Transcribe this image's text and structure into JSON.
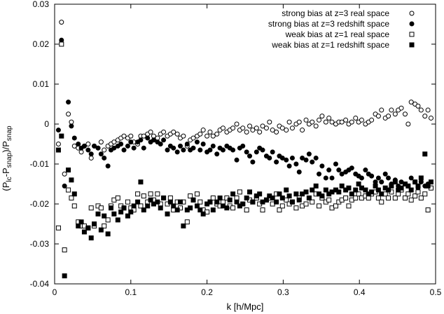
{
  "chart_data": {
    "type": "scatter",
    "title": "",
    "xlabel": "k [h/Mpc]",
    "ylabel": "(P_lc - P_snap)/P_snap",
    "xlim": [
      0,
      0.5
    ],
    "ylim": [
      -0.04,
      0.03
    ],
    "xticks": [
      "0",
      "0.1",
      "0.2",
      "0.3",
      "0.4",
      "0.5"
    ],
    "yticks": [
      "-0.04",
      "-0.03",
      "-0.02",
      "-0.01",
      "0",
      "0.01",
      "0.02",
      "0.03"
    ],
    "xtick_values": [
      0,
      0.1,
      0.2,
      0.3,
      0.4,
      0.5
    ],
    "ytick_values": [
      -0.04,
      -0.03,
      -0.02,
      -0.01,
      0,
      0.01,
      0.02,
      0.03
    ],
    "grid": false,
    "legend_position": "top-right",
    "series": [
      {
        "name": "strong bias at z=3 real space",
        "marker": "open-circle",
        "x": [
          0.005,
          0.009,
          0.013,
          0.018,
          0.022,
          0.026,
          0.031,
          0.035,
          0.039,
          0.044,
          0.048,
          0.052,
          0.057,
          0.061,
          0.065,
          0.07,
          0.074,
          0.078,
          0.083,
          0.087,
          0.091,
          0.096,
          0.1,
          0.104,
          0.109,
          0.113,
          0.117,
          0.122,
          0.126,
          0.13,
          0.135,
          0.139,
          0.143,
          0.148,
          0.152,
          0.156,
          0.161,
          0.165,
          0.169,
          0.174,
          0.178,
          0.182,
          0.187,
          0.191,
          0.195,
          0.2,
          0.204,
          0.208,
          0.213,
          0.217,
          0.221,
          0.226,
          0.23,
          0.234,
          0.239,
          0.243,
          0.247,
          0.252,
          0.256,
          0.26,
          0.265,
          0.269,
          0.273,
          0.278,
          0.282,
          0.286,
          0.291,
          0.295,
          0.299,
          0.304,
          0.308,
          0.312,
          0.317,
          0.321,
          0.325,
          0.33,
          0.334,
          0.338,
          0.343,
          0.347,
          0.351,
          0.356,
          0.36,
          0.364,
          0.369,
          0.373,
          0.377,
          0.382,
          0.386,
          0.39,
          0.395,
          0.399,
          0.403,
          0.408,
          0.412,
          0.416,
          0.421,
          0.425,
          0.429,
          0.434,
          0.438,
          0.442,
          0.447,
          0.451,
          0.455,
          0.46,
          0.464,
          0.468,
          0.473,
          0.477,
          0.481,
          0.486,
          0.49,
          0.494
        ],
        "y": [
          -0.005,
          0.0255,
          -0.0125,
          0.0025,
          0.0005,
          -0.0055,
          -0.006,
          -0.007,
          -0.0055,
          -0.005,
          -0.0085,
          -0.0055,
          -0.006,
          -0.0045,
          -0.0065,
          -0.0055,
          -0.005,
          -0.0045,
          -0.004,
          -0.0035,
          -0.003,
          -0.0035,
          -0.003,
          -0.0045,
          -0.005,
          -0.003,
          -0.003,
          -0.0025,
          -0.002,
          -0.003,
          -0.0035,
          -0.0025,
          -0.002,
          -0.003,
          -0.0025,
          -0.002,
          -0.0025,
          -0.0035,
          -0.003,
          -0.0055,
          -0.004,
          -0.0035,
          -0.003,
          -0.0025,
          -0.0015,
          -0.003,
          -0.002,
          -0.003,
          -0.0025,
          -0.0015,
          -0.001,
          -0.002,
          -0.0015,
          -0.001,
          0.0,
          -0.0015,
          -0.001,
          -0.002,
          -0.0005,
          -0.0015,
          -0.001,
          -0.002,
          -0.0005,
          -0.001,
          0.0005,
          -0.0015,
          -0.002,
          -0.0005,
          -0.001,
          -0.0015,
          0.0005,
          -0.001,
          0.0,
          0.0005,
          -0.0015,
          0.001,
          0.0,
          0.0005,
          -0.0005,
          0.001,
          0.002,
          0.0005,
          0.0015,
          0.0005,
          0.0,
          0.0005,
          0.0005,
          0.001,
          0.0,
          0.0005,
          0.0015,
          0.0005,
          0.001,
          0.0,
          0.0005,
          0.001,
          0.0025,
          0.002,
          0.0035,
          0.0015,
          0.002,
          0.0035,
          0.0025,
          0.0035,
          0.004,
          0.0025,
          0.0,
          0.0055,
          0.005,
          0.0045,
          0.0035,
          0.002,
          0.0035,
          0.0015
        ]
      },
      {
        "name": "strong bias at z=3 redshift space",
        "marker": "filled-circle",
        "x": [
          0.005,
          0.009,
          0.013,
          0.018,
          0.022,
          0.026,
          0.031,
          0.035,
          0.039,
          0.044,
          0.048,
          0.052,
          0.057,
          0.061,
          0.065,
          0.07,
          0.074,
          0.078,
          0.083,
          0.087,
          0.091,
          0.096,
          0.1,
          0.104,
          0.109,
          0.113,
          0.117,
          0.122,
          0.126,
          0.13,
          0.135,
          0.139,
          0.143,
          0.148,
          0.152,
          0.156,
          0.161,
          0.165,
          0.169,
          0.174,
          0.178,
          0.182,
          0.187,
          0.191,
          0.195,
          0.2,
          0.204,
          0.208,
          0.213,
          0.217,
          0.221,
          0.226,
          0.23,
          0.234,
          0.239,
          0.243,
          0.247,
          0.252,
          0.256,
          0.26,
          0.265,
          0.269,
          0.273,
          0.278,
          0.282,
          0.286,
          0.291,
          0.295,
          0.299,
          0.304,
          0.308,
          0.312,
          0.317,
          0.321,
          0.325,
          0.33,
          0.334,
          0.338,
          0.343,
          0.347,
          0.351,
          0.356,
          0.36,
          0.364,
          0.369,
          0.373,
          0.377,
          0.382,
          0.386,
          0.39,
          0.395,
          0.399,
          0.403,
          0.408,
          0.412,
          0.416,
          0.421,
          0.425,
          0.429,
          0.434,
          0.438,
          0.442,
          0.447,
          0.451,
          0.455,
          0.46,
          0.464,
          0.468,
          0.473,
          0.477,
          0.481,
          0.486,
          0.49,
          0.494
        ],
        "y": [
          -0.0015,
          0.021,
          -0.0155,
          0.0055,
          -0.0005,
          -0.0035,
          -0.005,
          -0.006,
          -0.0055,
          -0.0065,
          -0.0075,
          -0.0055,
          -0.006,
          -0.0075,
          -0.0085,
          -0.0105,
          -0.0065,
          -0.006,
          -0.0055,
          -0.005,
          -0.0065,
          -0.0055,
          -0.0045,
          -0.006,
          -0.0045,
          -0.004,
          -0.006,
          -0.0035,
          -0.0045,
          -0.004,
          -0.0045,
          -0.005,
          -0.004,
          -0.0065,
          -0.0055,
          -0.006,
          -0.007,
          -0.0055,
          -0.0065,
          -0.005,
          -0.0065,
          -0.006,
          -0.0045,
          -0.0065,
          -0.005,
          -0.007,
          -0.0065,
          -0.0055,
          -0.0075,
          -0.006,
          -0.0065,
          -0.0055,
          -0.006,
          -0.0065,
          -0.009,
          -0.006,
          -0.0055,
          -0.007,
          -0.008,
          -0.0095,
          -0.007,
          -0.006,
          -0.0065,
          -0.008,
          -0.0085,
          -0.007,
          -0.0095,
          -0.008,
          -0.0085,
          -0.009,
          -0.0105,
          -0.0085,
          -0.01,
          -0.012,
          -0.0085,
          -0.009,
          -0.0075,
          -0.0095,
          -0.0085,
          -0.0125,
          -0.0105,
          -0.0135,
          -0.0115,
          -0.0135,
          -0.01,
          -0.0115,
          -0.0125,
          -0.012,
          -0.0115,
          -0.011,
          -0.0125,
          -0.013,
          -0.0135,
          -0.0115,
          -0.0125,
          -0.013,
          -0.0145,
          -0.0135,
          -0.0145,
          -0.0125,
          -0.0135,
          -0.015,
          -0.014,
          -0.0155,
          -0.0145,
          -0.015,
          -0.0155,
          -0.0135,
          -0.0145,
          -0.016,
          -0.0145,
          -0.0155,
          -0.015,
          -0.016
        ]
      },
      {
        "name": "weak bias at z=1 real space",
        "marker": "open-square",
        "x": [
          0.005,
          0.009,
          0.013,
          0.018,
          0.022,
          0.026,
          0.031,
          0.035,
          0.039,
          0.044,
          0.048,
          0.052,
          0.057,
          0.061,
          0.065,
          0.07,
          0.074,
          0.078,
          0.083,
          0.087,
          0.091,
          0.096,
          0.1,
          0.104,
          0.109,
          0.113,
          0.117,
          0.122,
          0.126,
          0.13,
          0.135,
          0.139,
          0.143,
          0.148,
          0.152,
          0.156,
          0.161,
          0.165,
          0.169,
          0.174,
          0.178,
          0.182,
          0.187,
          0.191,
          0.195,
          0.2,
          0.204,
          0.208,
          0.213,
          0.217,
          0.221,
          0.226,
          0.23,
          0.234,
          0.239,
          0.243,
          0.247,
          0.252,
          0.256,
          0.26,
          0.265,
          0.269,
          0.273,
          0.278,
          0.282,
          0.286,
          0.291,
          0.295,
          0.299,
          0.304,
          0.308,
          0.312,
          0.317,
          0.321,
          0.325,
          0.33,
          0.334,
          0.338,
          0.343,
          0.347,
          0.351,
          0.356,
          0.36,
          0.364,
          0.369,
          0.373,
          0.377,
          0.382,
          0.386,
          0.39,
          0.395,
          0.399,
          0.403,
          0.408,
          0.412,
          0.416,
          0.421,
          0.425,
          0.429,
          0.434,
          0.438,
          0.442,
          0.447,
          0.451,
          0.455,
          0.46,
          0.464,
          0.468,
          0.473,
          0.477,
          0.481,
          0.486,
          0.49,
          0.494
        ],
        "y": [
          -0.026,
          0.02,
          -0.0315,
          -0.0165,
          -0.0185,
          -0.0205,
          -0.0245,
          -0.0255,
          -0.0255,
          -0.026,
          -0.021,
          -0.0255,
          -0.0205,
          -0.021,
          -0.0255,
          -0.024,
          -0.0205,
          -0.019,
          -0.0185,
          -0.0205,
          -0.021,
          -0.0195,
          -0.021,
          -0.0215,
          -0.0175,
          -0.0205,
          -0.018,
          -0.0195,
          -0.0175,
          -0.019,
          -0.0175,
          -0.02,
          -0.0185,
          -0.02,
          -0.0185,
          -0.0215,
          -0.0195,
          -0.021,
          -0.0195,
          -0.0245,
          -0.018,
          -0.019,
          -0.0175,
          -0.0195,
          -0.0215,
          -0.022,
          -0.0195,
          -0.0185,
          -0.02,
          -0.0205,
          -0.0195,
          -0.0185,
          -0.0205,
          -0.021,
          -0.0185,
          -0.017,
          -0.02,
          -0.0215,
          -0.019,
          -0.0195,
          -0.0185,
          -0.02,
          -0.0215,
          -0.019,
          -0.0185,
          -0.02,
          -0.0175,
          -0.0215,
          -0.0205,
          -0.019,
          -0.02,
          -0.0195,
          -0.021,
          -0.0185,
          -0.0205,
          -0.02,
          -0.0185,
          -0.0195,
          -0.0175,
          -0.0205,
          -0.0185,
          -0.0195,
          -0.019,
          -0.021,
          -0.0205,
          -0.0195,
          -0.019,
          -0.0185,
          -0.0205,
          -0.019,
          -0.0185,
          -0.0175,
          -0.0185,
          -0.018,
          -0.0185,
          -0.0175,
          -0.017,
          -0.0185,
          -0.0195,
          -0.0175,
          -0.0185,
          -0.017,
          -0.0185,
          -0.0175,
          -0.0165,
          -0.0185,
          -0.0175,
          -0.019,
          -0.018,
          -0.017,
          -0.0185,
          -0.0175,
          -0.0215,
          -0.016
        ]
      },
      {
        "name": "weak bias at z=1 redshift space",
        "marker": "filled-square",
        "x": [
          0.005,
          0.009,
          0.013,
          0.018,
          0.022,
          0.026,
          0.031,
          0.035,
          0.039,
          0.044,
          0.048,
          0.052,
          0.057,
          0.061,
          0.065,
          0.07,
          0.074,
          0.078,
          0.083,
          0.087,
          0.091,
          0.096,
          0.1,
          0.104,
          0.109,
          0.113,
          0.117,
          0.122,
          0.126,
          0.13,
          0.135,
          0.139,
          0.143,
          0.148,
          0.152,
          0.156,
          0.161,
          0.165,
          0.169,
          0.174,
          0.178,
          0.182,
          0.187,
          0.191,
          0.195,
          0.2,
          0.204,
          0.208,
          0.213,
          0.217,
          0.221,
          0.226,
          0.23,
          0.234,
          0.239,
          0.243,
          0.247,
          0.252,
          0.256,
          0.26,
          0.265,
          0.269,
          0.273,
          0.278,
          0.282,
          0.286,
          0.291,
          0.295,
          0.299,
          0.304,
          0.308,
          0.312,
          0.317,
          0.321,
          0.325,
          0.33,
          0.334,
          0.338,
          0.343,
          0.347,
          0.351,
          0.356,
          0.36,
          0.364,
          0.369,
          0.373,
          0.377,
          0.382,
          0.386,
          0.39,
          0.395,
          0.399,
          0.403,
          0.408,
          0.412,
          0.416,
          0.421,
          0.425,
          0.429,
          0.434,
          0.438,
          0.442,
          0.447,
          0.451,
          0.455,
          0.46,
          0.464,
          0.468,
          0.473,
          0.477,
          0.481,
          0.486,
          0.49,
          0.494
        ],
        "y": [
          -0.0065,
          -0.003,
          -0.038,
          -0.0115,
          -0.014,
          -0.0175,
          -0.0255,
          -0.0245,
          -0.027,
          -0.026,
          -0.0285,
          -0.025,
          -0.0225,
          -0.0265,
          -0.023,
          -0.0275,
          -0.021,
          -0.0225,
          -0.024,
          -0.022,
          -0.021,
          -0.023,
          -0.022,
          -0.0205,
          -0.0195,
          -0.0145,
          -0.0215,
          -0.0205,
          -0.019,
          -0.02,
          -0.0195,
          -0.021,
          -0.0185,
          -0.0225,
          -0.0195,
          -0.0205,
          -0.0215,
          -0.0195,
          -0.0255,
          -0.0215,
          -0.021,
          -0.019,
          -0.0205,
          -0.0215,
          -0.0225,
          -0.02,
          -0.0195,
          -0.0215,
          -0.0195,
          -0.0185,
          -0.0205,
          -0.021,
          -0.019,
          -0.0175,
          -0.0195,
          -0.0205,
          -0.02,
          -0.0185,
          -0.017,
          -0.0195,
          -0.018,
          -0.0175,
          -0.0195,
          -0.019,
          -0.018,
          -0.0185,
          -0.0195,
          -0.0175,
          -0.0185,
          -0.0165,
          -0.018,
          -0.0195,
          -0.0175,
          -0.019,
          -0.0175,
          -0.017,
          -0.0185,
          -0.0165,
          -0.0155,
          -0.0175,
          -0.018,
          -0.0165,
          -0.0175,
          -0.017,
          -0.0165,
          -0.017,
          -0.0155,
          -0.0165,
          -0.016,
          -0.0175,
          -0.0165,
          -0.015,
          -0.016,
          -0.0165,
          -0.0175,
          -0.017,
          -0.0155,
          -0.0165,
          -0.0175,
          -0.016,
          -0.0165,
          -0.0155,
          -0.0145,
          -0.0165,
          -0.016,
          -0.015,
          -0.0155,
          -0.0165,
          -0.0145,
          -0.0155,
          -0.0135,
          -0.0075,
          -0.0155,
          -0.0145
        ]
      }
    ]
  }
}
